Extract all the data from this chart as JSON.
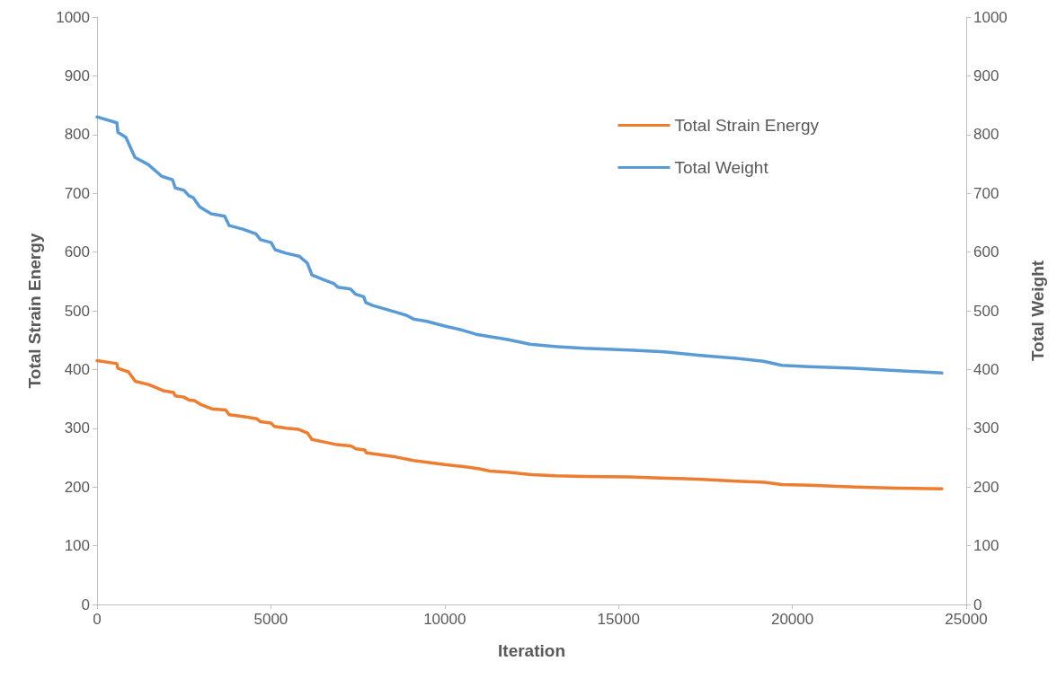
{
  "chart_data": {
    "type": "line",
    "xlabel": "Iteration",
    "ylabel": "Total Strain Energy",
    "y2label": "Total Weight",
    "xlim": [
      0,
      25000
    ],
    "xticks": [
      0,
      5000,
      10000,
      15000,
      20000,
      25000
    ],
    "ylim": [
      0,
      1000
    ],
    "yticks": [
      0,
      100,
      200,
      300,
      400,
      500,
      600,
      700,
      800,
      900,
      1000
    ],
    "y2lim": [
      0,
      1000
    ],
    "y2ticks": [
      0,
      100,
      200,
      300,
      400,
      500,
      600,
      700,
      800,
      900,
      1000
    ],
    "grid": false,
    "legend": "top right",
    "marker": "none",
    "line_style": "solid",
    "series": [
      {
        "name": "Total Strain Energy",
        "color": "#ed7d31",
        "x": [
          0,
          570,
          600,
          900,
          1100,
          1500,
          1900,
          2200,
          2250,
          2500,
          2650,
          2800,
          3000,
          3300,
          3700,
          3800,
          4200,
          4600,
          4700,
          5000,
          5100,
          5450,
          5800,
          6050,
          6180,
          6500,
          6900,
          7300,
          7450,
          7700,
          7750,
          8000,
          8600,
          9100,
          9500,
          10000,
          10500,
          11000,
          11300,
          11800,
          12500,
          13200,
          14000,
          15300,
          16400,
          17400,
          18400,
          19200,
          19700,
          20500,
          21800,
          23000,
          24300
        ],
        "values": [
          415,
          410,
          402,
          396,
          380,
          374,
          364,
          361,
          355,
          353,
          348,
          347,
          340,
          333,
          331,
          323,
          320,
          316,
          311,
          309,
          303,
          300,
          298,
          292,
          281,
          277,
          272,
          270,
          265,
          263,
          258,
          256,
          251,
          245,
          242,
          238,
          235,
          231,
          227,
          225,
          221,
          219,
          218,
          217,
          215,
          213,
          210,
          208,
          204,
          203,
          200,
          198,
          197
        ]
      },
      {
        "name": "Total Weight",
        "color": "#5b9bd5",
        "axis": "y2",
        "x": [
          0,
          570,
          600,
          830,
          1090,
          1470,
          1860,
          2170,
          2250,
          2500,
          2640,
          2760,
          2950,
          3280,
          3670,
          3800,
          4190,
          4570,
          4700,
          5010,
          5120,
          5430,
          5810,
          6050,
          6180,
          6510,
          6820,
          6930,
          7290,
          7440,
          7670,
          7730,
          7930,
          8580,
          8910,
          9100,
          9480,
          10000,
          10440,
          10900,
          11290,
          11810,
          12450,
          13230,
          14000,
          15300,
          16330,
          17360,
          18400,
          19170,
          19690,
          20470,
          21760,
          23060,
          24300
        ],
        "values": [
          830,
          820,
          804,
          795,
          761,
          749,
          729,
          723,
          709,
          705,
          696,
          693,
          677,
          665,
          661,
          645,
          639,
          631,
          621,
          616,
          604,
          598,
          593,
          581,
          561,
          553,
          546,
          540,
          537,
          528,
          524,
          514,
          509,
          498,
          492,
          486,
          482,
          474,
          468,
          460,
          456,
          451,
          443,
          439,
          436,
          433,
          430,
          424,
          419,
          414,
          407,
          405,
          402,
          398,
          394
        ]
      }
    ]
  }
}
